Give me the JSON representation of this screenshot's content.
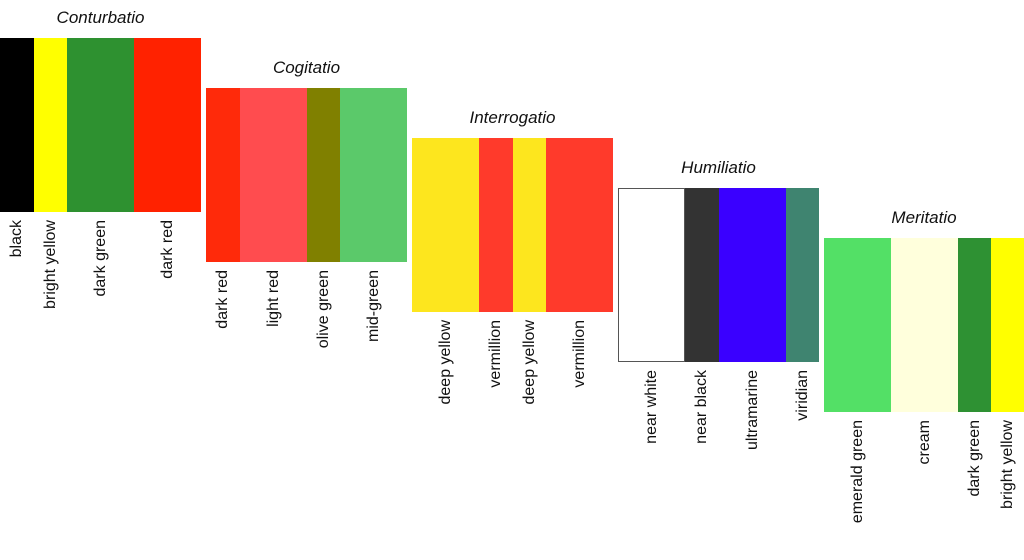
{
  "groups": [
    {
      "title": "Conturbatio",
      "swatches": [
        {
          "label": "black",
          "color": "#000000"
        },
        {
          "label": "bright yellow",
          "color": "#ffff00"
        },
        {
          "label": "dark green",
          "color": "#2e9130"
        },
        {
          "label": "dark red",
          "color": "#ff2200"
        }
      ]
    },
    {
      "title": "Cogitatio",
      "swatches": [
        {
          "label": "dark red",
          "color": "#ff2a0a"
        },
        {
          "label": "light red",
          "color": "#ff4c4f"
        },
        {
          "label": "olive green",
          "color": "#808000"
        },
        {
          "label": "mid-green",
          "color": "#5bc96a"
        }
      ]
    },
    {
      "title": "Interrogatio",
      "swatches": [
        {
          "label": "deep yellow",
          "color": "#fde61e"
        },
        {
          "label": "vermillion",
          "color": "#ff3a2b"
        },
        {
          "label": "deep yellow",
          "color": "#fde61e"
        },
        {
          "label": "vermillion",
          "color": "#ff3a2b"
        }
      ]
    },
    {
      "title": "Humiliatio",
      "swatches": [
        {
          "label": "near white",
          "color": "#ffffff"
        },
        {
          "label": "near black",
          "color": "#333333"
        },
        {
          "label": "ultramarine",
          "color": "#3a00ff"
        },
        {
          "label": "viridian",
          "color": "#3f8470"
        }
      ]
    },
    {
      "title": "Meritatio",
      "swatches": [
        {
          "label": "emerald green",
          "color": "#53e066"
        },
        {
          "label": "cream",
          "color": "#ffffdc"
        },
        {
          "label": "dark green",
          "color": "#2e9133"
        },
        {
          "label": "bright yellow",
          "color": "#ffff00"
        }
      ]
    }
  ]
}
